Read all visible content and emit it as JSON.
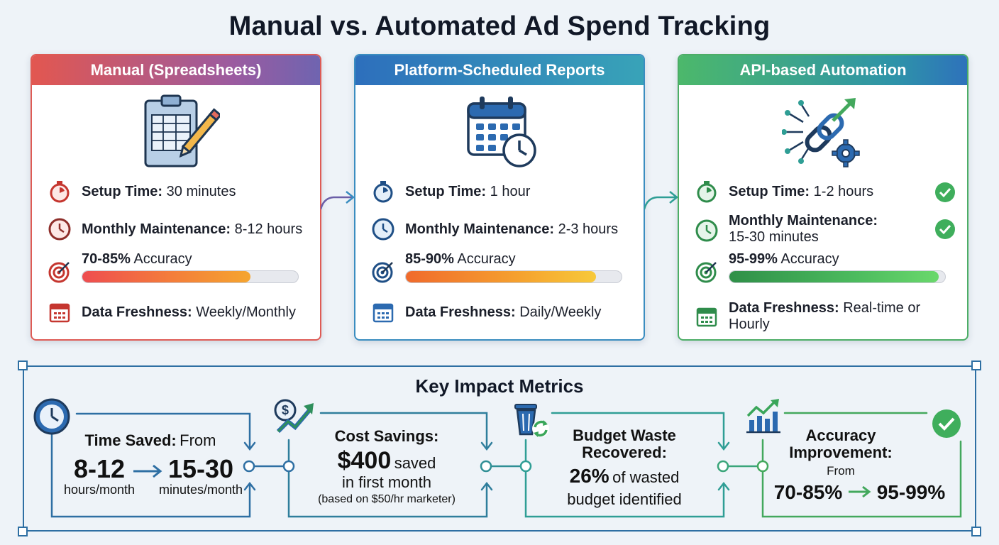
{
  "title": "Manual vs. Automated Ad Spend Tracking",
  "cards": [
    {
      "header": "Manual (Spreadsheets)",
      "setup_label": "Setup Time:",
      "setup_value": "30 minutes",
      "maint_label": "Monthly Maintenance:",
      "maint_value": "8-12 hours",
      "acc_strong": "70-85%",
      "acc_text": "Accuracy",
      "acc_fill": 0.78,
      "fresh_label": "Data Freshness:",
      "fresh_value": "Weekly/Monthly",
      "icon": "clipboard-spreadsheet-icon",
      "color": "#de5b55"
    },
    {
      "header": "Platform-Scheduled Reports",
      "setup_label": "Setup Time:",
      "setup_value": "1 hour",
      "maint_label": "Monthly Maintenance:",
      "maint_value": "2-3 hours",
      "acc_strong": "85-90%",
      "acc_text": "Accuracy",
      "acc_fill": 0.88,
      "fresh_label": "Data Freshness:",
      "fresh_value": "Daily/Weekly",
      "icon": "calendar-clock-icon",
      "color": "#3a8dc0"
    },
    {
      "header": "API-based Automation",
      "setup_label": "Setup Time:",
      "setup_value": "1-2 hours",
      "maint_label": "Monthly Maintenance:",
      "maint_value": "15-30 minutes",
      "acc_strong": "95-99%",
      "acc_text": "Accuracy",
      "acc_fill": 0.97,
      "fresh_label": "Data Freshness:",
      "fresh_value": "Real-time or Hourly",
      "icon": "link-gear-growth-icon",
      "color": "#4cad66"
    }
  ],
  "metrics": {
    "title": "Key Impact Metrics",
    "time": {
      "label": "Time Saved:",
      "from_word": "From",
      "from_value": "8-12",
      "from_unit": "hours/month",
      "to_value": "15-30",
      "to_unit": "minutes/month"
    },
    "cost": {
      "label": "Cost Savings:",
      "amount": "$400",
      "saved": "saved",
      "line2": "in first month",
      "note": "(based on $50/hr marketer)"
    },
    "waste": {
      "label_1": "Budget Waste",
      "label_2": "Recovered:",
      "pct": "26%",
      "line1_rest": "of wasted",
      "line2": "budget identified"
    },
    "accuracy": {
      "label_1": "Accuracy",
      "label_2": "Improvement:",
      "from_word": "From",
      "from_value": "70-85%",
      "to_value": "95-99%"
    }
  },
  "colors": {
    "primary_blue": "#2e6fa3",
    "teal": "#2f9e95",
    "green": "#43a85d",
    "red": "#de5b55"
  }
}
